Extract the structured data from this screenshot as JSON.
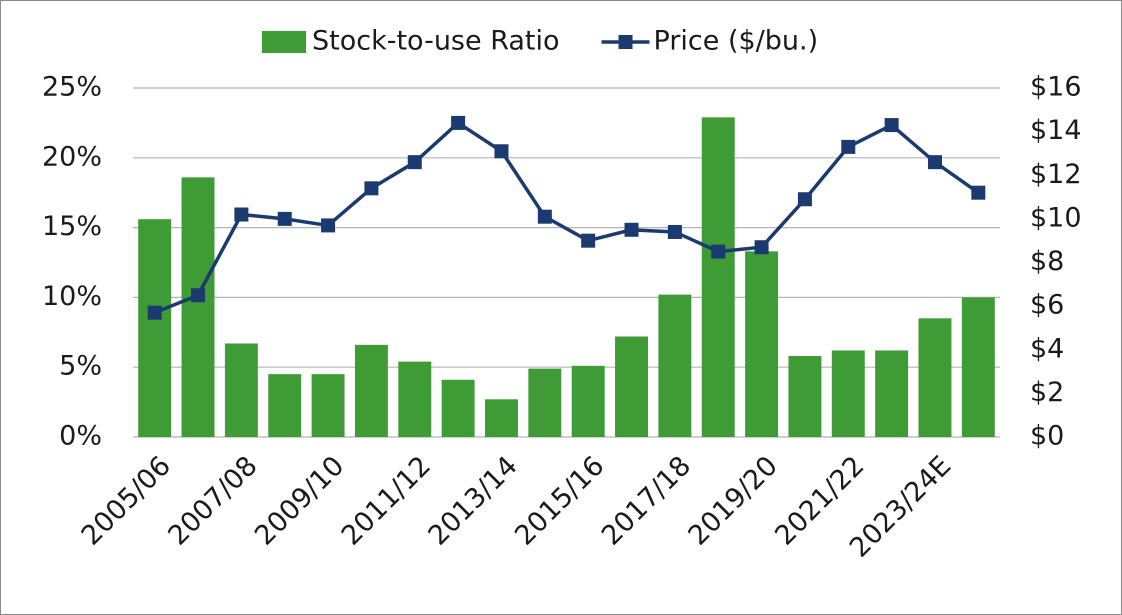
{
  "chart_data": {
    "type": "combo",
    "categories": [
      "2005/06",
      null,
      "2007/08",
      null,
      "2009/10",
      null,
      "2011/12",
      null,
      "2013/14",
      null,
      "2015/16",
      null,
      "2017/18",
      null,
      "2019/20",
      null,
      "2021/22",
      null,
      "2023/24E",
      null
    ],
    "series": [
      {
        "name": "Stock-to-use Ratio",
        "type": "bar",
        "color": "#3f9b36",
        "values": [
          15.6,
          18.6,
          6.7,
          4.5,
          4.5,
          6.6,
          5.4,
          4.1,
          2.7,
          4.9,
          5.1,
          7.2,
          10.2,
          22.9,
          13.3,
          5.8,
          6.2,
          6.2,
          8.5,
          10.0
        ]
      },
      {
        "name": "Price ($/bu.)",
        "type": "line",
        "color": "#1b3a6f",
        "axis": "y2",
        "values": [
          5.7,
          6.5,
          10.2,
          10.0,
          9.7,
          11.4,
          12.6,
          14.4,
          13.1,
          10.1,
          9.0,
          9.5,
          9.4,
          8.5,
          8.7,
          10.9,
          13.3,
          14.3,
          12.6,
          11.2
        ]
      }
    ],
    "ylim": [
      0,
      25
    ],
    "yticks": [
      {
        "value": 0,
        "label": "0%"
      },
      {
        "value": 5,
        "label": "5%"
      },
      {
        "value": 10,
        "label": "10%"
      },
      {
        "value": 15,
        "label": "15%"
      },
      {
        "value": 20,
        "label": "20%"
      },
      {
        "value": 25,
        "label": "25%"
      }
    ],
    "y2lim": [
      0,
      16
    ],
    "y2ticks": [
      {
        "value": 0,
        "label": "$0"
      },
      {
        "value": 2,
        "label": "$2"
      },
      {
        "value": 4,
        "label": "$4"
      },
      {
        "value": 6,
        "label": "$6"
      },
      {
        "value": 8,
        "label": "$8"
      },
      {
        "value": 10,
        "label": "$10"
      },
      {
        "value": 12,
        "label": "$12"
      },
      {
        "value": 14,
        "label": "$14"
      },
      {
        "value": 16,
        "label": "$16"
      }
    ],
    "grid": true,
    "legend": "top"
  }
}
